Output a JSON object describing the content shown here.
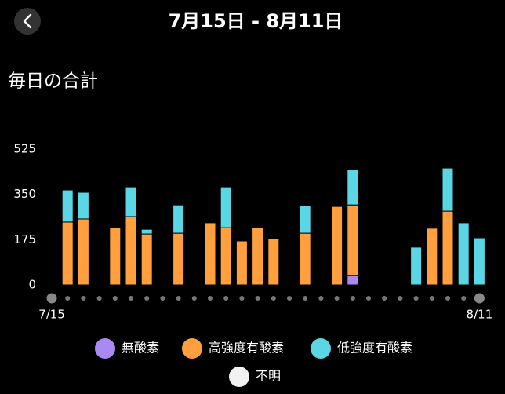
{
  "header": {
    "title": "7月15日 - 8月11日"
  },
  "chart_data": {
    "type": "stacked-bar",
    "title": "毎日の合計",
    "categories": [
      "7/15",
      null,
      null,
      null,
      null,
      null,
      null,
      null,
      null,
      null,
      null,
      null,
      null,
      null,
      null,
      null,
      null,
      null,
      null,
      null,
      null,
      null,
      null,
      null,
      null,
      null,
      null,
      "8/11"
    ],
    "series": [
      {
        "name": "無酸素",
        "color": "#a98af5",
        "values": [
          0,
          0,
          0,
          0,
          0,
          0,
          0,
          0,
          0,
          0,
          0,
          0,
          0,
          0,
          0,
          0,
          0,
          0,
          0,
          36,
          0,
          0,
          0,
          0,
          0,
          0,
          0,
          0
        ]
      },
      {
        "name": "高強度有酸素",
        "color": "#ff9f3d",
        "values": [
          0,
          243,
          255,
          0,
          222,
          264,
          197,
          0,
          200,
          0,
          240,
          221,
          170,
          222,
          179,
          0,
          200,
          0,
          303,
          273,
          0,
          0,
          0,
          0,
          219,
          285,
          0,
          0
        ]
      },
      {
        "name": "低強度有酸素",
        "color": "#5ad6e4",
        "values": [
          0,
          124,
          103,
          0,
          0,
          115,
          18,
          0,
          109,
          0,
          0,
          158,
          0,
          0,
          0,
          0,
          106,
          0,
          0,
          137,
          0,
          0,
          0,
          146,
          0,
          167,
          240,
          182
        ]
      },
      {
        "name": "不明",
        "color": "#f2f2f2",
        "values": [
          0,
          0,
          0,
          0,
          0,
          0,
          0,
          0,
          0,
          0,
          0,
          0,
          0,
          0,
          0,
          0,
          0,
          0,
          0,
          0,
          0,
          0,
          0,
          0,
          0,
          0,
          0,
          0
        ]
      }
    ],
    "ylim": [
      0,
      525
    ],
    "yticks": [
      0,
      175,
      350,
      525
    ],
    "grid": false
  }
}
